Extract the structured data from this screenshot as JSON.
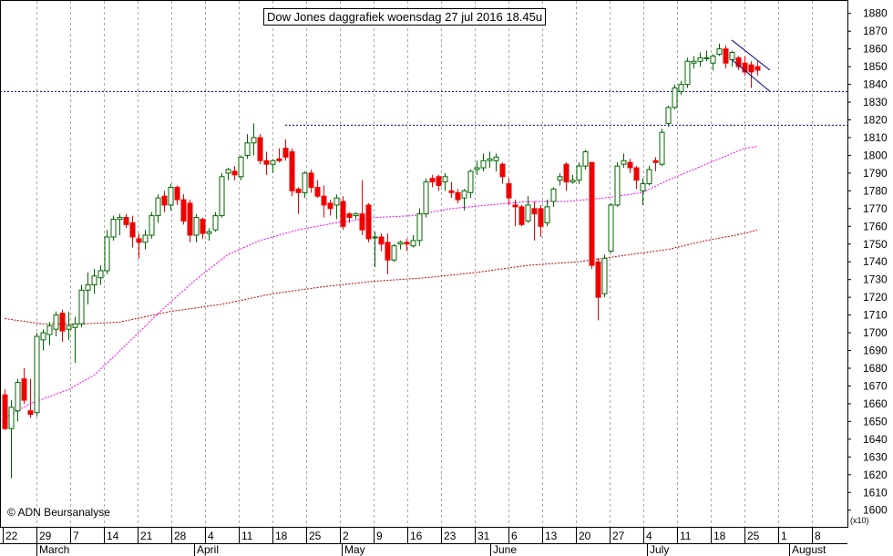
{
  "chart_data": {
    "type": "candlestick",
    "title": "Dow Jones daggrafiek woensdag 27 jul 2016 18.45u",
    "source": "© ADN Beursanalyse",
    "scale_note": "(x10)",
    "ylim": [
      1600,
      1885
    ],
    "yticks": [
      1600,
      1610,
      1620,
      1630,
      1640,
      1650,
      1660,
      1670,
      1680,
      1690,
      1700,
      1710,
      1720,
      1730,
      1740,
      1750,
      1760,
      1770,
      1780,
      1790,
      1800,
      1810,
      1820,
      1830,
      1840,
      1850,
      1860,
      1870,
      1880
    ],
    "x_day_labels": [
      "22",
      "29",
      "7",
      "14",
      "21",
      "28",
      "4",
      "11",
      "18",
      "25",
      "2",
      "9",
      "16",
      "23",
      "31",
      "6",
      "13",
      "20",
      "27",
      "4",
      "11",
      "18",
      "25",
      "1",
      "8"
    ],
    "x_month_labels": [
      "March",
      "April",
      "May",
      "June",
      "July",
      "August"
    ],
    "colors": {
      "up": "#006400",
      "down": "#ee0000",
      "ma_short": "#ff00ff",
      "ma_long": "#cc0000",
      "lines": "#000080",
      "grid": "#aaaaaa"
    },
    "candles": [
      {
        "o": 1665,
        "h": 1668,
        "l": 1645,
        "c": 1646
      },
      {
        "o": 1646,
        "h": 1662,
        "l": 1618,
        "c": 1658
      },
      {
        "o": 1656,
        "h": 1674,
        "l": 1650,
        "c": 1672
      },
      {
        "o": 1674,
        "h": 1680,
        "l": 1660,
        "c": 1662
      },
      {
        "o": 1656,
        "h": 1674,
        "l": 1652,
        "c": 1654
      },
      {
        "o": 1655,
        "h": 1700,
        "l": 1653,
        "c": 1698
      },
      {
        "o": 1696,
        "h": 1702,
        "l": 1690,
        "c": 1700
      },
      {
        "o": 1699,
        "h": 1706,
        "l": 1693,
        "c": 1704
      },
      {
        "o": 1702,
        "h": 1712,
        "l": 1698,
        "c": 1710
      },
      {
        "o": 1711,
        "h": 1713,
        "l": 1695,
        "c": 1701
      },
      {
        "o": 1702,
        "h": 1712,
        "l": 1696,
        "c": 1704
      },
      {
        "o": 1703,
        "h": 1709,
        "l": 1683,
        "c": 1705
      },
      {
        "o": 1705,
        "h": 1727,
        "l": 1703,
        "c": 1724
      },
      {
        "o": 1724,
        "h": 1734,
        "l": 1716,
        "c": 1727
      },
      {
        "o": 1727,
        "h": 1736,
        "l": 1722,
        "c": 1732
      },
      {
        "o": 1731,
        "h": 1738,
        "l": 1727,
        "c": 1735
      },
      {
        "o": 1735,
        "h": 1758,
        "l": 1733,
        "c": 1754
      },
      {
        "o": 1754,
        "h": 1766,
        "l": 1752,
        "c": 1764
      },
      {
        "o": 1764,
        "h": 1767,
        "l": 1755,
        "c": 1765
      },
      {
        "o": 1765,
        "h": 1767,
        "l": 1759,
        "c": 1761
      },
      {
        "o": 1762,
        "h": 1766,
        "l": 1748,
        "c": 1754
      },
      {
        "o": 1753,
        "h": 1756,
        "l": 1742,
        "c": 1751
      },
      {
        "o": 1751,
        "h": 1758,
        "l": 1747,
        "c": 1755
      },
      {
        "o": 1755,
        "h": 1768,
        "l": 1753,
        "c": 1766
      },
      {
        "o": 1766,
        "h": 1778,
        "l": 1762,
        "c": 1776
      },
      {
        "o": 1777,
        "h": 1780,
        "l": 1768,
        "c": 1772
      },
      {
        "o": 1772,
        "h": 1784,
        "l": 1769,
        "c": 1782
      },
      {
        "o": 1782,
        "h": 1783,
        "l": 1772,
        "c": 1775
      },
      {
        "o": 1775,
        "h": 1778,
        "l": 1761,
        "c": 1763
      },
      {
        "o": 1773,
        "h": 1775,
        "l": 1751,
        "c": 1755
      },
      {
        "o": 1755,
        "h": 1767,
        "l": 1751,
        "c": 1765
      },
      {
        "o": 1764,
        "h": 1765,
        "l": 1753,
        "c": 1756
      },
      {
        "o": 1756,
        "h": 1759,
        "l": 1752,
        "c": 1757
      },
      {
        "o": 1758,
        "h": 1768,
        "l": 1757,
        "c": 1766
      },
      {
        "o": 1766,
        "h": 1790,
        "l": 1765,
        "c": 1788
      },
      {
        "o": 1790,
        "h": 1793,
        "l": 1786,
        "c": 1792
      },
      {
        "o": 1791,
        "h": 1794,
        "l": 1786,
        "c": 1789
      },
      {
        "o": 1788,
        "h": 1800,
        "l": 1786,
        "c": 1799
      },
      {
        "o": 1800,
        "h": 1812,
        "l": 1798,
        "c": 1807
      },
      {
        "o": 1807,
        "h": 1818,
        "l": 1800,
        "c": 1810
      },
      {
        "o": 1810,
        "h": 1812,
        "l": 1795,
        "c": 1797
      },
      {
        "o": 1797,
        "h": 1802,
        "l": 1789,
        "c": 1795
      },
      {
        "o": 1795,
        "h": 1798,
        "l": 1790,
        "c": 1797
      },
      {
        "o": 1798,
        "h": 1804,
        "l": 1796,
        "c": 1797
      },
      {
        "o": 1804,
        "h": 1809,
        "l": 1797,
        "c": 1799
      },
      {
        "o": 1802,
        "h": 1804,
        "l": 1777,
        "c": 1780
      },
      {
        "o": 1781,
        "h": 1782,
        "l": 1767,
        "c": 1779
      },
      {
        "o": 1779,
        "h": 1791,
        "l": 1776,
        "c": 1790
      },
      {
        "o": 1790,
        "h": 1792,
        "l": 1779,
        "c": 1782
      },
      {
        "o": 1782,
        "h": 1786,
        "l": 1776,
        "c": 1777
      },
      {
        "o": 1777,
        "h": 1783,
        "l": 1765,
        "c": 1772
      },
      {
        "o": 1773,
        "h": 1775,
        "l": 1766,
        "c": 1770
      },
      {
        "o": 1772,
        "h": 1778,
        "l": 1764,
        "c": 1776
      },
      {
        "o": 1774,
        "h": 1777,
        "l": 1758,
        "c": 1760
      },
      {
        "o": 1767,
        "h": 1768,
        "l": 1762,
        "c": 1765
      },
      {
        "o": 1766,
        "h": 1768,
        "l": 1764,
        "c": 1767
      },
      {
        "o": 1767,
        "h": 1786,
        "l": 1755,
        "c": 1758
      },
      {
        "o": 1772,
        "h": 1773,
        "l": 1751,
        "c": 1753
      },
      {
        "o": 1754,
        "h": 1757,
        "l": 1737,
        "c": 1754
      },
      {
        "o": 1754,
        "h": 1756,
        "l": 1746,
        "c": 1750
      },
      {
        "o": 1751,
        "h": 1756,
        "l": 1733,
        "c": 1741
      },
      {
        "o": 1741,
        "h": 1750,
        "l": 1740,
        "c": 1749
      },
      {
        "o": 1750,
        "h": 1752,
        "l": 1747,
        "c": 1751
      },
      {
        "o": 1751,
        "h": 1753,
        "l": 1746,
        "c": 1750
      },
      {
        "o": 1749,
        "h": 1755,
        "l": 1748,
        "c": 1752
      },
      {
        "o": 1752,
        "h": 1770,
        "l": 1749,
        "c": 1767
      },
      {
        "o": 1767,
        "h": 1787,
        "l": 1765,
        "c": 1785
      },
      {
        "o": 1787,
        "h": 1789,
        "l": 1782,
        "c": 1785
      },
      {
        "o": 1788,
        "h": 1789,
        "l": 1780,
        "c": 1783
      },
      {
        "o": 1785,
        "h": 1790,
        "l": 1780,
        "c": 1788
      },
      {
        "o": 1780,
        "h": 1785,
        "l": 1776,
        "c": 1779
      },
      {
        "o": 1779,
        "h": 1781,
        "l": 1773,
        "c": 1775
      },
      {
        "o": 1776,
        "h": 1781,
        "l": 1769,
        "c": 1780
      },
      {
        "o": 1779,
        "h": 1792,
        "l": 1776,
        "c": 1791
      },
      {
        "o": 1792,
        "h": 1797,
        "l": 1789,
        "c": 1793
      },
      {
        "o": 1793,
        "h": 1801,
        "l": 1791,
        "c": 1797
      },
      {
        "o": 1797,
        "h": 1802,
        "l": 1793,
        "c": 1798
      },
      {
        "o": 1797,
        "h": 1801,
        "l": 1791,
        "c": 1799
      },
      {
        "o": 1795,
        "h": 1796,
        "l": 1784,
        "c": 1788
      },
      {
        "o": 1784,
        "h": 1787,
        "l": 1772,
        "c": 1776
      },
      {
        "o": 1772,
        "h": 1775,
        "l": 1760,
        "c": 1771
      },
      {
        "o": 1771,
        "h": 1772,
        "l": 1760,
        "c": 1761
      },
      {
        "o": 1763,
        "h": 1777,
        "l": 1762,
        "c": 1772
      },
      {
        "o": 1770,
        "h": 1774,
        "l": 1752,
        "c": 1767
      },
      {
        "o": 1770,
        "h": 1772,
        "l": 1754,
        "c": 1760
      },
      {
        "o": 1762,
        "h": 1775,
        "l": 1760,
        "c": 1771
      },
      {
        "o": 1774,
        "h": 1782,
        "l": 1771,
        "c": 1781
      },
      {
        "o": 1786,
        "h": 1790,
        "l": 1783,
        "c": 1788
      },
      {
        "o": 1795,
        "h": 1796,
        "l": 1780,
        "c": 1785
      },
      {
        "o": 1785,
        "h": 1789,
        "l": 1784,
        "c": 1786
      },
      {
        "o": 1786,
        "h": 1796,
        "l": 1784,
        "c": 1794
      },
      {
        "o": 1794,
        "h": 1803,
        "l": 1792,
        "c": 1802
      },
      {
        "o": 1796,
        "h": 1796,
        "l": 1736,
        "c": 1738
      },
      {
        "o": 1740,
        "h": 1742,
        "l": 1707,
        "c": 1720
      },
      {
        "o": 1722,
        "h": 1744,
        "l": 1720,
        "c": 1742
      },
      {
        "o": 1746,
        "h": 1773,
        "l": 1745,
        "c": 1772
      },
      {
        "o": 1772,
        "h": 1796,
        "l": 1771,
        "c": 1794
      },
      {
        "o": 1795,
        "h": 1801,
        "l": 1793,
        "c": 1797
      },
      {
        "o": 1796,
        "h": 1798,
        "l": 1790,
        "c": 1793
      },
      {
        "o": 1793,
        "h": 1794,
        "l": 1781,
        "c": 1786
      },
      {
        "o": 1780,
        "h": 1787,
        "l": 1772,
        "c": 1784
      },
      {
        "o": 1784,
        "h": 1794,
        "l": 1783,
        "c": 1792
      },
      {
        "o": 1797,
        "h": 1799,
        "l": 1791,
        "c": 1796
      },
      {
        "o": 1795,
        "h": 1815,
        "l": 1794,
        "c": 1813
      },
      {
        "o": 1818,
        "h": 1828,
        "l": 1816,
        "c": 1827
      },
      {
        "o": 1827,
        "h": 1840,
        "l": 1826,
        "c": 1838
      },
      {
        "o": 1836,
        "h": 1842,
        "l": 1834,
        "c": 1840
      },
      {
        "o": 1840,
        "h": 1855,
        "l": 1838,
        "c": 1853
      },
      {
        "o": 1852,
        "h": 1856,
        "l": 1849,
        "c": 1853
      },
      {
        "o": 1853,
        "h": 1858,
        "l": 1850,
        "c": 1855
      },
      {
        "o": 1855,
        "h": 1859,
        "l": 1853,
        "c": 1855
      },
      {
        "o": 1852,
        "h": 1857,
        "l": 1848,
        "c": 1856
      },
      {
        "o": 1857,
        "h": 1863,
        "l": 1856,
        "c": 1860
      },
      {
        "o": 1860,
        "h": 1862,
        "l": 1849,
        "c": 1852
      },
      {
        "o": 1854,
        "h": 1859,
        "l": 1850,
        "c": 1858
      },
      {
        "o": 1855,
        "h": 1856,
        "l": 1848,
        "c": 1850
      },
      {
        "o": 1852,
        "h": 1856,
        "l": 1845,
        "c": 1847
      },
      {
        "o": 1851,
        "h": 1853,
        "l": 1838,
        "c": 1847
      },
      {
        "o": 1850,
        "h": 1853,
        "l": 1845,
        "c": 1848
      }
    ],
    "resistance_lines": [
      1836,
      1817
    ],
    "channel_top": [
      [
        114,
        1865
      ],
      [
        120,
        1848
      ]
    ],
    "channel_bottom": [
      [
        114,
        1854
      ],
      [
        120,
        1836
      ]
    ],
    "ma_short": [
      [
        0,
        1652
      ],
      [
        4,
        1660
      ],
      [
        10,
        1668
      ],
      [
        14,
        1676
      ],
      [
        17,
        1686
      ],
      [
        21,
        1700
      ],
      [
        25,
        1714
      ],
      [
        30,
        1730
      ],
      [
        35,
        1744
      ],
      [
        40,
        1752
      ],
      [
        46,
        1758
      ],
      [
        52,
        1762
      ],
      [
        58,
        1765
      ],
      [
        64,
        1766
      ],
      [
        70,
        1770
      ],
      [
        76,
        1772
      ],
      [
        82,
        1774
      ],
      [
        88,
        1774
      ],
      [
        94,
        1776
      ],
      [
        100,
        1779
      ],
      [
        104,
        1786
      ],
      [
        108,
        1792
      ],
      [
        112,
        1798
      ],
      [
        116,
        1804
      ],
      [
        118,
        1805
      ]
    ],
    "ma_long": [
      [
        0,
        1708
      ],
      [
        6,
        1705
      ],
      [
        12,
        1705
      ],
      [
        18,
        1706
      ],
      [
        26,
        1712
      ],
      [
        34,
        1716
      ],
      [
        42,
        1722
      ],
      [
        50,
        1726
      ],
      [
        58,
        1729
      ],
      [
        66,
        1731
      ],
      [
        74,
        1734
      ],
      [
        82,
        1738
      ],
      [
        90,
        1740
      ],
      [
        98,
        1744
      ],
      [
        104,
        1747
      ],
      [
        110,
        1752
      ],
      [
        116,
        1756
      ],
      [
        118,
        1758
      ]
    ]
  }
}
